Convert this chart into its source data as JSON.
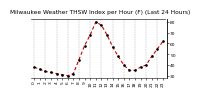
{
  "title": "Milwaukee Weather THSW Index per Hour (F) (Last 24 Hours)",
  "hours": [
    0,
    1,
    2,
    3,
    4,
    5,
    6,
    7,
    8,
    9,
    10,
    11,
    12,
    13,
    14,
    15,
    16,
    17,
    18,
    19,
    20,
    21,
    22,
    23
  ],
  "values": [
    38,
    36,
    34,
    33,
    32,
    31,
    30,
    32,
    45,
    58,
    68,
    80,
    77,
    68,
    57,
    48,
    40,
    35,
    35,
    38,
    40,
    48,
    55,
    62
  ],
  "ylim": [
    28,
    83
  ],
  "ytick_labels": [
    "80",
    "70",
    "60",
    "50",
    "40",
    "30"
  ],
  "ytick_values": [
    80,
    70,
    60,
    50,
    40,
    30
  ],
  "line_color": "#cc0000",
  "dot_color": "#000000",
  "background_color": "#ffffff",
  "grid_color": "#888888",
  "title_color": "#000000",
  "title_fontsize": 4.2,
  "tick_fontsize": 3.2,
  "line_width": 0.8,
  "dot_size": 0.9
}
